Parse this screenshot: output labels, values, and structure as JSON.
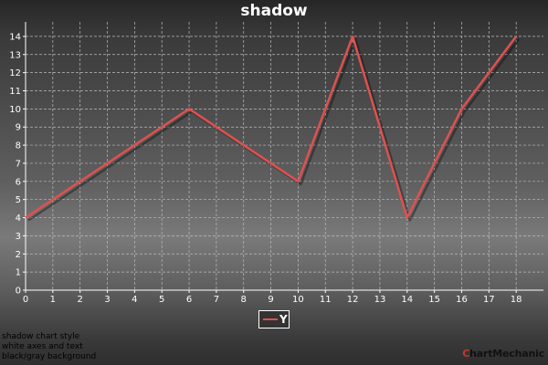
{
  "chart_data": {
    "type": "line",
    "title": "shadow",
    "x": [
      0,
      6,
      10,
      12,
      14,
      16,
      18
    ],
    "series": [
      {
        "name": "Y",
        "values": [
          4,
          10,
          6,
          14,
          4,
          10,
          14
        ]
      }
    ],
    "xlim": [
      0,
      19
    ],
    "ylim": [
      0,
      14.8
    ],
    "x_ticks": [
      "0",
      "1",
      "2",
      "3",
      "4",
      "5",
      "6",
      "7",
      "8",
      "9",
      "10",
      "11",
      "12",
      "13",
      "14",
      "15",
      "16",
      "17",
      "18"
    ],
    "y_ticks": [
      "0",
      "1",
      "2",
      "3",
      "4",
      "5",
      "6",
      "7",
      "8",
      "9",
      "10",
      "11",
      "12",
      "13",
      "14"
    ],
    "grid": true,
    "legend_position": "bottom-center",
    "colors": {
      "series": "#e05050",
      "axes": "#ffffff",
      "grid": "#bbbbbb"
    }
  },
  "notes": [
    "shadow chart style",
    "white axes and text",
    "black/gray background"
  ],
  "brand": {
    "c": "C",
    "rest": "hartMechanic"
  }
}
